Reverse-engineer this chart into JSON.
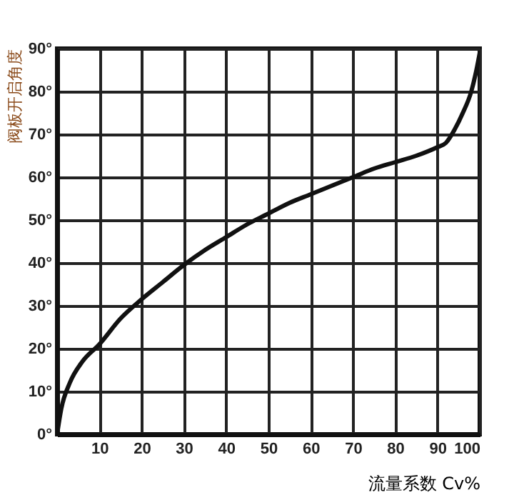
{
  "chart_data": {
    "type": "line",
    "xlabel": "流量系数 Cv%",
    "ylabel": "阀板开启角度",
    "x": [
      0,
      1,
      3,
      6,
      10,
      15,
      20,
      25,
      30,
      35,
      40,
      45,
      50,
      55,
      60,
      65,
      70,
      75,
      80,
      85,
      90,
      92,
      94,
      96,
      98,
      99,
      100
    ],
    "series": [
      {
        "color": "#111111",
        "values": [
          0,
          6,
          12,
          17,
          21,
          27,
          31.5,
          35.5,
          39.5,
          43,
          46,
          49,
          51.5,
          54,
          56,
          58,
          60,
          62,
          63.5,
          65,
          67,
          68,
          71,
          75,
          80,
          84,
          89
        ]
      }
    ],
    "xlim": [
      0,
      100
    ],
    "xticks": [
      10,
      20,
      30,
      40,
      50,
      60,
      70,
      80,
      90,
      100
    ],
    "ylim": [
      0,
      90
    ],
    "yticks": [
      {
        "value": 0,
        "label": "0°"
      },
      {
        "value": 10,
        "label": "10°"
      },
      {
        "value": 20,
        "label": "20°"
      },
      {
        "value": 30,
        "label": "30°"
      },
      {
        "value": 40,
        "label": "40°"
      },
      {
        "value": 50,
        "label": "50°"
      },
      {
        "value": 60,
        "label": "60°"
      },
      {
        "value": 70,
        "label": "70°"
      },
      {
        "value": 80,
        "label": "80°"
      },
      {
        "value": 90,
        "label": "90°"
      }
    ],
    "grid": true,
    "legend": false,
    "marker": "none",
    "line_style": "solid"
  }
}
